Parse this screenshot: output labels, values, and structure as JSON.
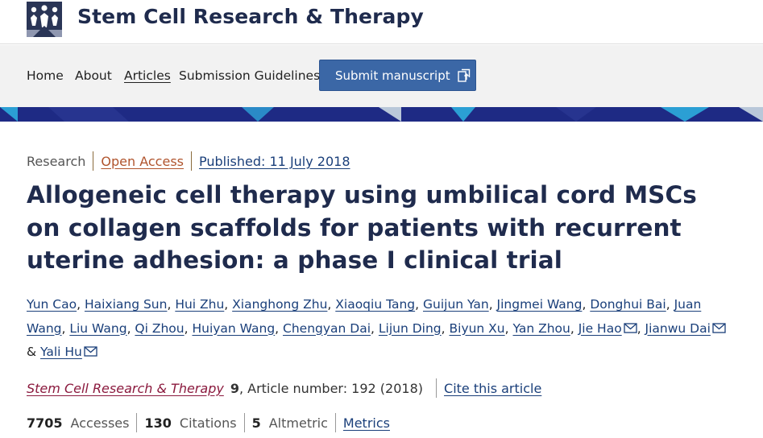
{
  "header": {
    "journal_name": "Stem Cell Research & Therapy"
  },
  "nav": {
    "items": [
      "Home",
      "About",
      "Articles",
      "Submission Guidelines"
    ],
    "submit_label": "Submit manuscript"
  },
  "article": {
    "type": "Research",
    "access": "Open Access",
    "published": "Published: 11 July 2018",
    "title": "Allogeneic cell therapy using umbilical cord MSCs on collagen scaffolds for patients with recurrent uterine adhesion: a phase I clinical trial",
    "authors": [
      {
        "name": "Yun Cao",
        "email": false
      },
      {
        "name": "Haixiang Sun",
        "email": false
      },
      {
        "name": "Hui Zhu",
        "email": false
      },
      {
        "name": "Xianghong Zhu",
        "email": false
      },
      {
        "name": "Xiaoqiu Tang",
        "email": false
      },
      {
        "name": "Guijun Yan",
        "email": false
      },
      {
        "name": "Jingmei Wang",
        "email": false
      },
      {
        "name": "Donghui Bai",
        "email": false
      },
      {
        "name": "Juan Wang",
        "email": false
      },
      {
        "name": "Liu Wang",
        "email": false
      },
      {
        "name": "Qi Zhou",
        "email": false
      },
      {
        "name": "Huiyan Wang",
        "email": false
      },
      {
        "name": "Chengyan Dai",
        "email": false
      },
      {
        "name": "Lijun Ding",
        "email": false
      },
      {
        "name": "Biyun Xu",
        "email": false
      },
      {
        "name": "Yan Zhou",
        "email": false
      },
      {
        "name": "Jie Hao",
        "email": true
      },
      {
        "name": "Jianwu Dai",
        "email": true
      },
      {
        "name": "Yali Hu",
        "email": true
      }
    ],
    "citation": {
      "journal": "Stem Cell Research & Therapy",
      "volume": "9",
      "article_number": ", Article number: 192 (2018)",
      "cite_label": "Cite this article"
    },
    "metrics": {
      "accesses_value": "7705",
      "accesses_label": "Accesses",
      "citations_value": "130",
      "citations_label": "Citations",
      "altmetric_value": "5",
      "altmetric_label": "Altmetric",
      "metrics_link": "Metrics"
    }
  },
  "colors": {
    "brand_navy": "#1f2b4d",
    "button_blue": "#3b67a6",
    "link_blue": "#1a3f7a",
    "open_access": "#b0542d",
    "journal_link": "#8b1a3e"
  },
  "icons": [
    "journal-logo-icon",
    "external-submit-icon",
    "mail-icon"
  ]
}
